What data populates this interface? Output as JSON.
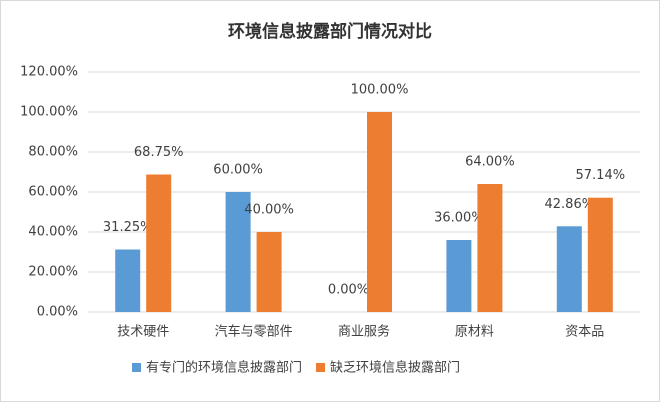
{
  "chart_data": {
    "type": "bar",
    "title": "环境信息披露部门情况对比",
    "categories": [
      "技术硬件",
      "汽车与零部件",
      "商业服务",
      "原材料",
      "资本品"
    ],
    "series": [
      {
        "name": "有专门的环境信息披露部门",
        "color": "#5b9bd5",
        "values": [
          31.25,
          60,
          0,
          36,
          42.86
        ],
        "value_labels": [
          "31.25%",
          "60.00%",
          "0.00%",
          "36.00%",
          "42.86%"
        ]
      },
      {
        "name": "缺乏环境信息披露部门",
        "color": "#ed7d31",
        "values": [
          68.75,
          40,
          100,
          64,
          57.14
        ],
        "value_labels": [
          "68.75%",
          "40.00%",
          "100.00%",
          "64.00%",
          "57.14%"
        ]
      }
    ],
    "ylim": [
      0,
      120
    ],
    "yticks": [
      {
        "value": 0,
        "label": "0.00%"
      },
      {
        "value": 20,
        "label": "20.00%"
      },
      {
        "value": 40,
        "label": "40.00%"
      },
      {
        "value": 60,
        "label": "60.00%"
      },
      {
        "value": 80,
        "label": "80.00%"
      },
      {
        "value": 100,
        "label": "100.00%"
      },
      {
        "value": 120,
        "label": "120.00%"
      }
    ],
    "grid": true,
    "legend": "bottom"
  }
}
